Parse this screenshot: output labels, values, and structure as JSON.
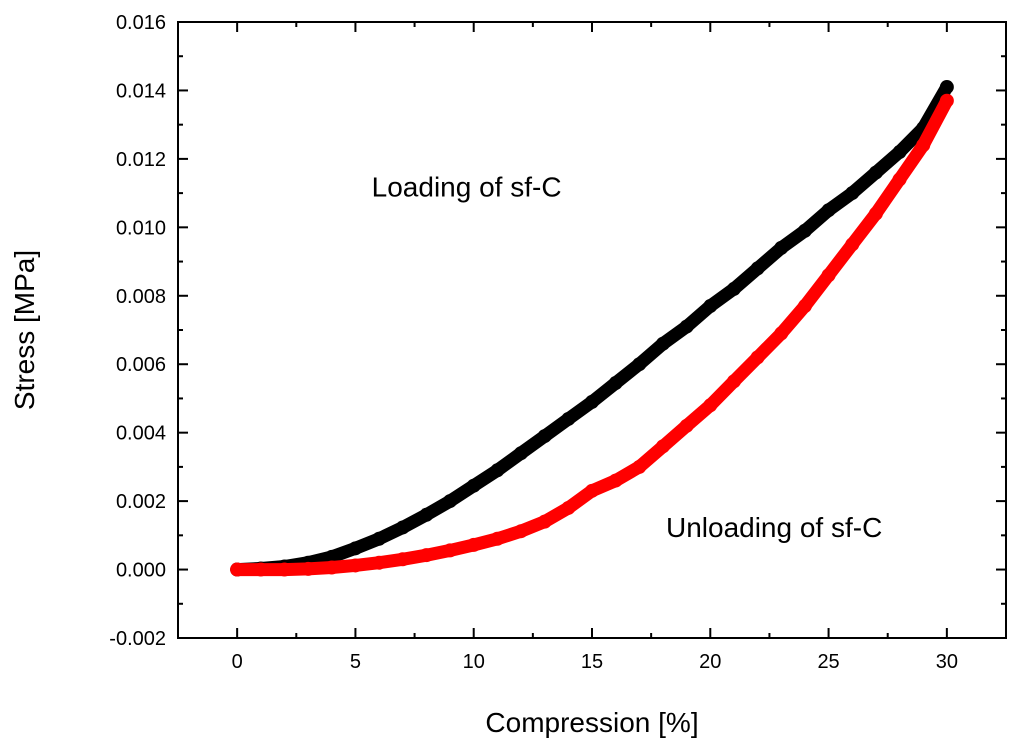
{
  "chart_data": {
    "type": "scatter",
    "title": "",
    "xlabel": "Compression [%]",
    "ylabel": "Stress [MPa]",
    "xlim": [
      -2.5,
      32.5
    ],
    "ylim": [
      -0.002,
      0.016
    ],
    "x_ticks": [
      0,
      5,
      10,
      15,
      20,
      25,
      30
    ],
    "x_tick_labels": [
      "0",
      "5",
      "10",
      "15",
      "20",
      "25",
      "30"
    ],
    "y_ticks": [
      -0.002,
      0.0,
      0.002,
      0.004,
      0.006,
      0.008,
      0.01,
      0.012,
      0.014,
      0.016
    ],
    "y_tick_labels": [
      "-0.002",
      "0.000",
      "0.002",
      "0.004",
      "0.006",
      "0.008",
      "0.010",
      "0.012",
      "0.014",
      "0.016"
    ],
    "grid": false,
    "series": [
      {
        "name": "Loading of sf-C",
        "color": "#000000",
        "x": [
          0,
          1,
          2,
          3,
          4,
          5,
          6,
          7,
          8,
          9,
          10,
          11,
          12,
          13,
          14,
          15,
          16,
          17,
          18,
          19,
          20,
          21,
          22,
          23,
          24,
          25,
          26,
          27,
          28,
          29,
          30
        ],
        "y": [
          0.0,
          3e-05,
          9e-05,
          0.0002,
          0.00037,
          0.00062,
          0.0009,
          0.00123,
          0.0016,
          0.002,
          0.00245,
          0.0029,
          0.0034,
          0.0039,
          0.0044,
          0.0049,
          0.00545,
          0.006,
          0.0066,
          0.0071,
          0.0077,
          0.0082,
          0.0088,
          0.0094,
          0.0099,
          0.0105,
          0.011,
          0.0116,
          0.0122,
          0.0129,
          0.0141
        ]
      },
      {
        "name": "Unloading of sf-C",
        "color": "#ff0000",
        "x": [
          0,
          1,
          2,
          3,
          4,
          5,
          6,
          7,
          8,
          9,
          10,
          11,
          12,
          13,
          14,
          15,
          16,
          17,
          18,
          19,
          20,
          21,
          22,
          23,
          24,
          25,
          26,
          27,
          28,
          29,
          30
        ],
        "y": [
          0.0,
          0.0,
          0.0,
          2e-05,
          6e-05,
          0.00012,
          0.0002,
          0.0003,
          0.00042,
          0.00056,
          0.00072,
          0.0009,
          0.00112,
          0.0014,
          0.0018,
          0.0023,
          0.0026,
          0.003,
          0.0036,
          0.0042,
          0.0048,
          0.0055,
          0.0062,
          0.0069,
          0.0077,
          0.0086,
          0.0095,
          0.0104,
          0.0114,
          0.0124,
          0.0137
        ]
      }
    ],
    "annotations": [
      {
        "text": "Loading of sf-C",
        "x": 9.7,
        "y": 0.0109
      },
      {
        "text": "Unloading of sf-C",
        "x": 22.7,
        "y": 0.00095
      }
    ]
  }
}
